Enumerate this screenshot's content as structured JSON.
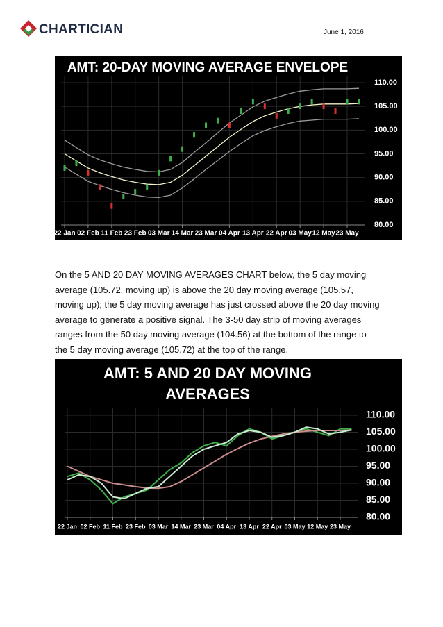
{
  "header": {
    "logo": "CHARTICIAN",
    "date": "June 1, 2016"
  },
  "body": {
    "paragraph": "On the 5 AND 20 DAY MOVING AVERAGES CHART below, the 5 day moving average (105.72, moving up) is above the 20 day moving average (105.57, moving up); the 5 day moving average has just crossed above the 20 day moving average to generate a positive signal. The 3-50 day strip of moving averages ranges from the 50 day moving average (104.56) at the bottom of the range to the 5 day moving average (105.72) at the top of the range."
  },
  "chart_data": [
    {
      "type": "line",
      "title": [
        "AMT: 20-DAY MOVING AVERAGE ENVELOPE"
      ],
      "categories": [
        "22 Jan",
        null,
        "02 Feb",
        null,
        "11 Feb",
        null,
        "23 Feb",
        null,
        "03 Mar",
        null,
        "14 Mar",
        null,
        "23 Mar",
        null,
        "04 Apr",
        null,
        "13 Apr",
        null,
        "22 Apr",
        null,
        "03 May",
        null,
        "12 May",
        null,
        "23 May",
        null
      ],
      "ylim": [
        80,
        110
      ],
      "yticks": [
        {
          "value": 80,
          "label": "80.00"
        },
        {
          "value": 85,
          "label": "85.00"
        },
        {
          "value": 90,
          "label": "90.00"
        },
        {
          "value": 95,
          "label": "95.00"
        },
        {
          "value": 100,
          "label": "100.00"
        },
        {
          "value": 105,
          "label": "105.00"
        },
        {
          "value": 110,
          "label": "110.00"
        }
      ],
      "grid": true,
      "series": [
        {
          "color": "#f3f0c8",
          "values": [
            95.0,
            93.5,
            92.0,
            91.0,
            90.2,
            89.5,
            89.0,
            88.6,
            88.5,
            89.0,
            90.5,
            92.5,
            94.5,
            96.5,
            98.5,
            100.2,
            101.8,
            103.0,
            103.8,
            104.5,
            105.0,
            105.3,
            105.5,
            105.5,
            105.5,
            105.6
          ]
        },
        {
          "color": "#9a9a9a",
          "values": [
            97.9,
            96.3,
            94.8,
            93.7,
            92.9,
            92.2,
            91.7,
            91.3,
            91.2,
            91.7,
            93.2,
            95.3,
            97.3,
            99.4,
            101.5,
            103.2,
            104.9,
            106.1,
            106.9,
            107.6,
            108.2,
            108.5,
            108.7,
            108.7,
            108.7,
            108.8
          ]
        },
        {
          "color": "#9a9a9a",
          "values": [
            92.2,
            90.7,
            89.2,
            88.3,
            87.5,
            86.8,
            86.3,
            85.9,
            85.8,
            86.3,
            87.8,
            89.7,
            91.7,
            93.6,
            95.5,
            97.2,
            98.8,
            99.9,
            100.7,
            101.4,
            101.9,
            102.1,
            102.3,
            102.3,
            102.3,
            102.4
          ]
        },
        {
          "color": "#3fae49",
          "values": [
            92,
            93,
            91,
            88,
            84,
            86,
            87,
            88,
            91,
            94,
            96,
            99,
            101,
            102,
            101,
            104,
            106,
            105,
            103,
            104,
            105,
            106,
            105,
            104,
            106,
            106
          ]
        }
      ]
    },
    {
      "type": "line",
      "title": [
        "AMT: 5 AND 20 DAY MOVING",
        "AVERAGES"
      ],
      "categories": [
        "22 Jan",
        null,
        "02 Feb",
        null,
        "11 Feb",
        null,
        "23 Feb",
        null,
        "03 Mar",
        null,
        "14 Mar",
        null,
        "23 Mar",
        null,
        "04 Apr",
        null,
        "13 Apr",
        null,
        "22 Apr",
        null,
        "03 May",
        null,
        "12 May",
        null,
        "23 May",
        null
      ],
      "ylim": [
        80,
        110
      ],
      "yticks": [
        {
          "value": 80,
          "label": "80.00"
        },
        {
          "value": 85,
          "label": "85.00"
        },
        {
          "value": 90,
          "label": "90.00"
        },
        {
          "value": 95,
          "label": "95.00"
        },
        {
          "value": 100,
          "label": "100.00"
        },
        {
          "value": 105,
          "label": "105.00"
        },
        {
          "value": 110,
          "label": "110.00"
        }
      ],
      "grid": true,
      "series": [
        {
          "color": "#3fae49",
          "values": [
            92,
            93,
            91,
            88,
            84,
            86,
            87,
            88,
            91,
            94,
            96,
            99,
            101,
            102,
            101,
            104,
            106,
            105,
            103,
            104,
            105,
            106,
            105,
            104,
            106,
            106
          ]
        },
        {
          "color": "#c98a8a",
          "values": [
            95.0,
            93.5,
            92.0,
            91.0,
            90.0,
            89.5,
            89.0,
            88.6,
            88.5,
            89.0,
            90.5,
            92.5,
            94.5,
            96.5,
            98.5,
            100.2,
            101.8,
            103.0,
            103.8,
            104.5,
            105.0,
            105.3,
            105.5,
            105.5,
            105.5,
            105.6
          ]
        },
        {
          "color": "#c9ead0",
          "values": [
            91,
            92.5,
            92,
            90,
            86,
            85.5,
            87,
            88.5,
            89,
            92,
            95,
            98,
            100,
            101,
            102,
            104.5,
            105.5,
            105,
            103.5,
            104,
            105,
            106.5,
            106,
            104.5,
            105,
            105.7
          ]
        }
      ]
    }
  ]
}
